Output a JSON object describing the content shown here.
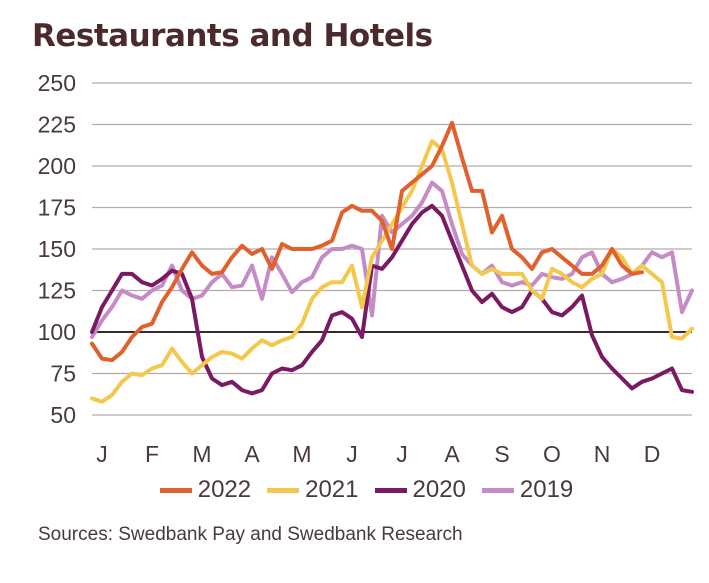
{
  "chart_data": {
    "type": "line",
    "title": "Restaurants and Hotels",
    "xlabel": "",
    "ylabel": "",
    "ylim": [
      50,
      250
    ],
    "xlim": [
      0,
      12
    ],
    "yticks": [
      50,
      75,
      100,
      125,
      150,
      175,
      200,
      225,
      250
    ],
    "xtick_labels": [
      "J",
      "F",
      "M",
      "A",
      "M",
      "J",
      "J",
      "A",
      "S",
      "O",
      "N",
      "D"
    ],
    "reference_line": 100,
    "grid": true,
    "legend_position": "bottom",
    "series": [
      {
        "name": "2022",
        "color": "#e0612e",
        "x": [
          0,
          0.2,
          0.4,
          0.6,
          0.8,
          1.0,
          1.2,
          1.4,
          1.6,
          1.8,
          2.0,
          2.2,
          2.4,
          2.6,
          2.8,
          3.0,
          3.2,
          3.4,
          3.6,
          3.8,
          4.0,
          4.2,
          4.4,
          4.6,
          4.8,
          5.0,
          5.2,
          5.4,
          5.6,
          5.8,
          6.0,
          6.2,
          6.4,
          6.6,
          6.8,
          7.0,
          7.2,
          7.4,
          7.6,
          7.8,
          8.0,
          8.2,
          8.4,
          8.6,
          8.8,
          9.0,
          9.2,
          9.4,
          9.6,
          9.8,
          10.0,
          10.2,
          10.4,
          10.6,
          10.8,
          11.0
        ],
        "values": [
          93,
          84,
          83,
          88,
          97,
          103,
          105,
          118,
          127,
          138,
          148,
          140,
          135,
          136,
          145,
          152,
          147,
          150,
          138,
          153,
          150,
          150,
          150,
          152,
          155,
          172,
          176,
          173,
          173,
          167,
          150,
          185,
          190,
          195,
          200,
          212,
          226,
          205,
          185,
          185,
          160,
          170,
          150,
          145,
          138,
          148,
          150,
          145,
          140,
          135,
          135,
          140,
          150,
          140,
          135,
          136
        ]
      },
      {
        "name": "2021",
        "color": "#f2c94c",
        "x": [
          0,
          0.2,
          0.4,
          0.6,
          0.8,
          1.0,
          1.2,
          1.4,
          1.6,
          1.8,
          2.0,
          2.2,
          2.4,
          2.6,
          2.8,
          3.0,
          3.2,
          3.4,
          3.6,
          3.8,
          4.0,
          4.2,
          4.4,
          4.6,
          4.8,
          5.0,
          5.2,
          5.4,
          5.6,
          5.8,
          6.0,
          6.2,
          6.4,
          6.6,
          6.8,
          7.0,
          7.2,
          7.4,
          7.6,
          7.8,
          8.0,
          8.2,
          8.4,
          8.6,
          8.8,
          9.0,
          9.2,
          9.4,
          9.6,
          9.8,
          10.0,
          10.2,
          10.4,
          10.6,
          10.8,
          11.0,
          11.2,
          11.4,
          11.6,
          11.8,
          12.0
        ],
        "values": [
          60,
          58,
          62,
          70,
          75,
          74,
          78,
          80,
          90,
          82,
          75,
          80,
          85,
          88,
          87,
          84,
          90,
          95,
          92,
          95,
          97,
          105,
          120,
          127,
          130,
          130,
          140,
          115,
          145,
          155,
          165,
          175,
          185,
          200,
          215,
          210,
          190,
          165,
          140,
          135,
          138,
          135,
          135,
          135,
          125,
          120,
          138,
          135,
          130,
          127,
          132,
          135,
          150,
          145,
          135,
          140,
          135,
          130,
          97,
          96,
          102
        ]
      },
      {
        "name": "2020",
        "color": "#7a1a62",
        "x": [
          0,
          0.2,
          0.4,
          0.6,
          0.8,
          1.0,
          1.2,
          1.4,
          1.6,
          1.8,
          2.0,
          2.2,
          2.4,
          2.6,
          2.8,
          3.0,
          3.2,
          3.4,
          3.6,
          3.8,
          4.0,
          4.2,
          4.4,
          4.6,
          4.8,
          5.0,
          5.2,
          5.4,
          5.6,
          5.8,
          6.0,
          6.2,
          6.4,
          6.6,
          6.8,
          7.0,
          7.2,
          7.4,
          7.6,
          7.8,
          8.0,
          8.2,
          8.4,
          8.6,
          8.8,
          9.0,
          9.2,
          9.4,
          9.6,
          9.8,
          10.0,
          10.2,
          10.4,
          10.6,
          10.8,
          11.0,
          11.2,
          11.4,
          11.6,
          11.8,
          12.0
        ],
        "values": [
          100,
          115,
          125,
          135,
          135,
          130,
          128,
          132,
          137,
          135,
          120,
          85,
          72,
          68,
          70,
          65,
          63,
          65,
          75,
          78,
          77,
          80,
          88,
          95,
          110,
          112,
          108,
          97,
          140,
          138,
          145,
          155,
          165,
          172,
          176,
          170,
          155,
          140,
          125,
          118,
          123,
          115,
          112,
          115,
          125,
          120,
          112,
          110,
          115,
          122,
          98,
          85,
          78,
          72,
          66,
          70,
          72,
          75,
          78,
          65,
          64
        ]
      },
      {
        "name": "2019",
        "color": "#c48bc6",
        "x": [
          0,
          0.2,
          0.4,
          0.6,
          0.8,
          1.0,
          1.2,
          1.4,
          1.6,
          1.8,
          2.0,
          2.2,
          2.4,
          2.6,
          2.8,
          3.0,
          3.2,
          3.4,
          3.6,
          3.8,
          4.0,
          4.2,
          4.4,
          4.6,
          4.8,
          5.0,
          5.2,
          5.4,
          5.6,
          5.8,
          6.0,
          6.2,
          6.4,
          6.6,
          6.8,
          7.0,
          7.2,
          7.4,
          7.6,
          7.8,
          8.0,
          8.2,
          8.4,
          8.6,
          8.8,
          9.0,
          9.2,
          9.4,
          9.6,
          9.8,
          10.0,
          10.2,
          10.4,
          10.6,
          10.8,
          11.0,
          11.2,
          11.4,
          11.6,
          11.8,
          12.0
        ],
        "values": [
          97,
          107,
          115,
          125,
          122,
          120,
          125,
          128,
          140,
          125,
          120,
          122,
          130,
          135,
          127,
          128,
          140,
          120,
          145,
          135,
          124,
          130,
          133,
          145,
          150,
          150,
          152,
          150,
          110,
          170,
          160,
          165,
          170,
          178,
          190,
          185,
          165,
          147,
          140,
          135,
          140,
          130,
          128,
          130,
          128,
          135,
          133,
          132,
          135,
          145,
          148,
          135,
          130,
          132,
          135,
          140,
          148,
          145,
          148,
          112,
          125
        ]
      }
    ]
  },
  "legend": {
    "items": [
      {
        "label": "2022",
        "color": "#e0612e"
      },
      {
        "label": "2021",
        "color": "#f2c94c"
      },
      {
        "label": "2020",
        "color": "#7a1a62"
      },
      {
        "label": "2019",
        "color": "#c48bc6"
      }
    ]
  },
  "source": "Sources: Swedbank Pay and Swedbank Research"
}
